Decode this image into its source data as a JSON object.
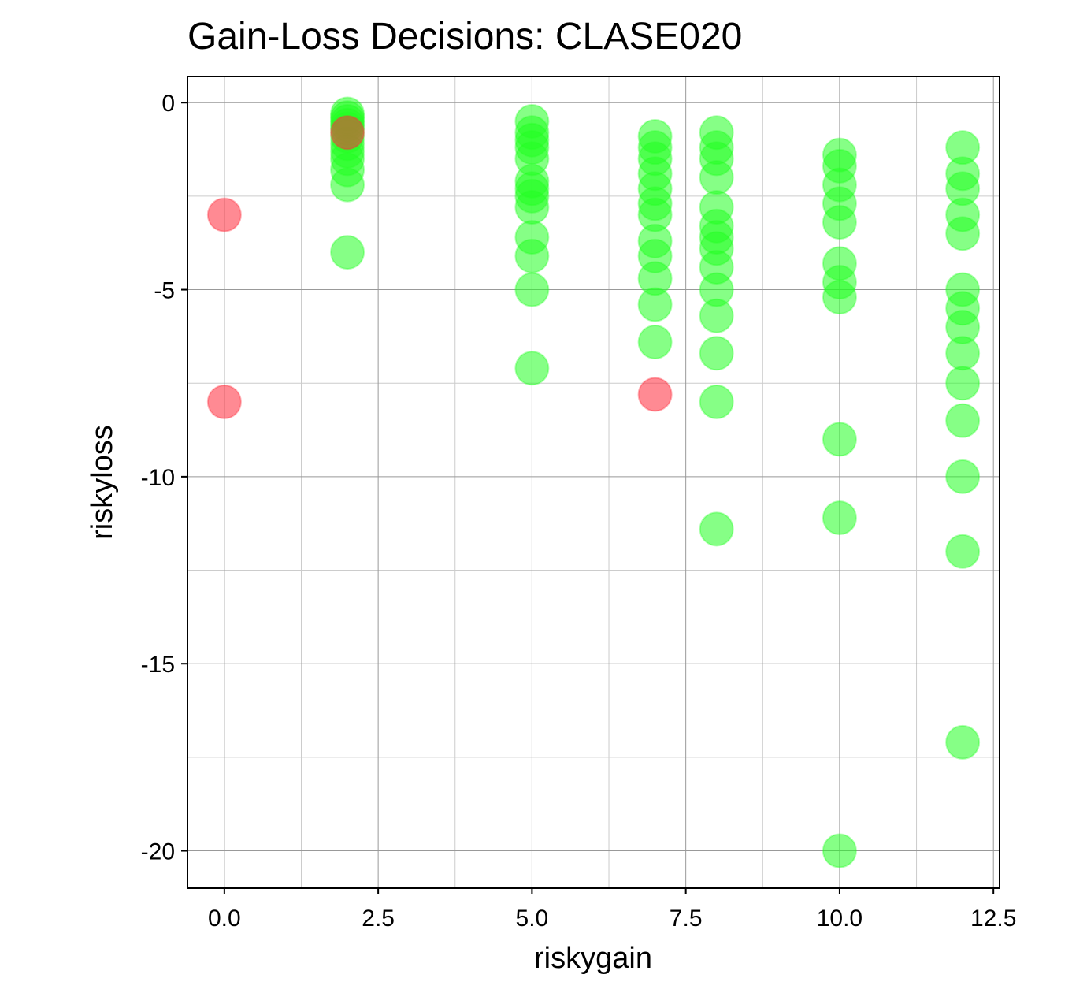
{
  "chart_data": {
    "type": "scatter",
    "title": "Gain-Loss Decisions: CLASE020",
    "xlabel": "riskygain",
    "ylabel": "riskyloss",
    "xlim": [
      -0.6,
      12.6
    ],
    "ylim": [
      -21,
      0.7
    ],
    "x_ticks": [
      0.0,
      2.5,
      5.0,
      7.5,
      10.0,
      12.5
    ],
    "x_tick_labels": [
      "0.0",
      "2.5",
      "5.0",
      "7.5",
      "10.0",
      "12.5"
    ],
    "y_ticks": [
      0,
      -5,
      -10,
      -15,
      -20
    ],
    "y_tick_labels": [
      "0",
      "-5",
      "-10",
      "-15",
      "-20"
    ],
    "grid": true,
    "colors": {
      "accepted": "#22ff22",
      "rejected": "#ff2a3a"
    },
    "series": [
      {
        "color_key": "accepted",
        "points": [
          [
            2,
            -0.3
          ],
          [
            2,
            -0.4
          ],
          [
            2,
            -0.5
          ],
          [
            2,
            -0.6
          ],
          [
            2,
            -0.7
          ],
          [
            2,
            -0.9
          ],
          [
            2,
            -1.1
          ],
          [
            2,
            -1.3
          ],
          [
            2,
            -1.5
          ],
          [
            2,
            -1.8
          ],
          [
            2,
            -2.2
          ],
          [
            2,
            -4.0
          ],
          [
            5,
            -0.5
          ],
          [
            5,
            -0.8
          ],
          [
            5,
            -1.0
          ],
          [
            5,
            -1.2
          ],
          [
            5,
            -1.5
          ],
          [
            5,
            -2.1
          ],
          [
            5,
            -2.3
          ],
          [
            5,
            -2.5
          ],
          [
            5,
            -2.8
          ],
          [
            5,
            -3.6
          ],
          [
            5,
            -4.1
          ],
          [
            5,
            -5.0
          ],
          [
            5,
            -7.1
          ],
          [
            7,
            -0.9
          ],
          [
            7,
            -1.2
          ],
          [
            7,
            -1.5
          ],
          [
            7,
            -1.9
          ],
          [
            7,
            -2.3
          ],
          [
            7,
            -2.7
          ],
          [
            7,
            -3.0
          ],
          [
            7,
            -3.7
          ],
          [
            7,
            -4.1
          ],
          [
            7,
            -4.7
          ],
          [
            7,
            -5.4
          ],
          [
            7,
            -6.4
          ],
          [
            8,
            -0.8
          ],
          [
            8,
            -1.2
          ],
          [
            8,
            -1.5
          ],
          [
            8,
            -2.0
          ],
          [
            8,
            -2.8
          ],
          [
            8,
            -3.3
          ],
          [
            8,
            -3.6
          ],
          [
            8,
            -3.9
          ],
          [
            8,
            -4.4
          ],
          [
            8,
            -5.0
          ],
          [
            8,
            -5.7
          ],
          [
            8,
            -6.7
          ],
          [
            8,
            -8.0
          ],
          [
            8,
            -11.4
          ],
          [
            10,
            -1.4
          ],
          [
            10,
            -1.7
          ],
          [
            10,
            -2.2
          ],
          [
            10,
            -2.7
          ],
          [
            10,
            -3.2
          ],
          [
            10,
            -4.3
          ],
          [
            10,
            -4.8
          ],
          [
            10,
            -5.2
          ],
          [
            10,
            -9.0
          ],
          [
            10,
            -11.1
          ],
          [
            10,
            -20.0
          ],
          [
            12,
            -1.2
          ],
          [
            12,
            -1.9
          ],
          [
            12,
            -2.3
          ],
          [
            12,
            -3.0
          ],
          [
            12,
            -3.5
          ],
          [
            12,
            -5.0
          ],
          [
            12,
            -5.5
          ],
          [
            12,
            -6.0
          ],
          [
            12,
            -6.7
          ],
          [
            12,
            -7.5
          ],
          [
            12,
            -8.5
          ],
          [
            12,
            -10.0
          ],
          [
            12,
            -12.0
          ],
          [
            12,
            -17.1
          ]
        ]
      },
      {
        "color_key": "rejected",
        "points": [
          [
            0,
            -3.0
          ],
          [
            0,
            -8.0
          ],
          [
            2,
            -0.8
          ],
          [
            7,
            -7.8
          ]
        ]
      }
    ]
  }
}
